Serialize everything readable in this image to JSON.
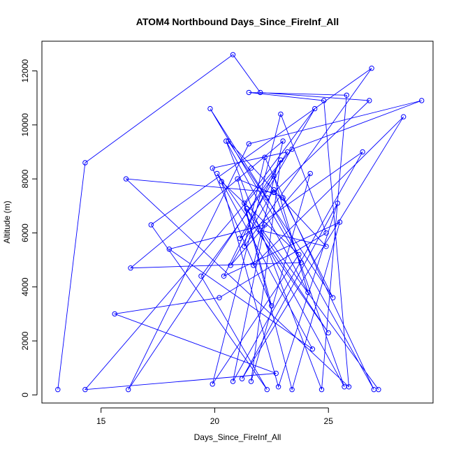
{
  "chart_data": {
    "type": "line",
    "title": "ATOM4 Northbound Days_Since_FireInf_All",
    "xlabel": "Days_Since_FireInf_All",
    "ylabel": "Altitude (m)",
    "xlim": [
      12.4,
      29.6
    ],
    "ylim": [
      -300,
      13100
    ],
    "xticks": [
      15,
      20,
      25
    ],
    "yticks": [
      0,
      2000,
      4000,
      6000,
      8000,
      10000,
      12000
    ],
    "series": [
      {
        "color": "#0000ff",
        "marker": "open-circle",
        "x": [
          13.1,
          14.3,
          20.8,
          22.0,
          26.8,
          22.6,
          16.1,
          25.9,
          24.8,
          21.5,
          25.8,
          24.7,
          20.5,
          24.1,
          22.6,
          19.4,
          22.3,
          17.2,
          26.9,
          21.3,
          22.2,
          27.0,
          22.3,
          19.8,
          23.8,
          16.3,
          21.6,
          23.0,
          21.7,
          28.3,
          21.2,
          25.4,
          22.8,
          20.3,
          23.7,
          19.9,
          22.9,
          24.9,
          20.2,
          15.6,
          22.7,
          14.3,
          23.4,
          29.1,
          21.5,
          16.2,
          23.2,
          19.9,
          22.5,
          21.3,
          24.4,
          21.1,
          26.5,
          20.8,
          22.2,
          18.0,
          24.3,
          20.1,
          25.0,
          22.0,
          24.9,
          20.6,
          25.2,
          23.0,
          21.0,
          23.4,
          25.5,
          20.4,
          22.9,
          21.6,
          24.2,
          20.7,
          22.6,
          25.7,
          21.4,
          27.2
        ],
        "y": [
          200,
          8600,
          12600,
          11200,
          10900,
          7500,
          8000,
          300,
          10900,
          11200,
          11100,
          200,
          9400,
          3800,
          8100,
          4400,
          200,
          6300,
          12100,
          5500,
          8800,
          200,
          7300,
          10600,
          4900,
          4700,
          8400,
          9400,
          4800,
          10300,
          600,
          7100,
          300,
          7900,
          5200,
          400,
          10400,
          6000,
          3600,
          3000,
          800,
          200,
          9100,
          10900,
          9300,
          200,
          9000,
          8400,
          3300,
          7100,
          10600,
          5800,
          9000,
          500,
          6300,
          5400,
          1700,
          8200,
          2300,
          6100,
          5500,
          9400,
          3600,
          7300,
          8000,
          200,
          6400,
          4400,
          8700,
          500,
          8200,
          4800,
          7600,
          300,
          6900,
          200
        ]
      }
    ]
  }
}
